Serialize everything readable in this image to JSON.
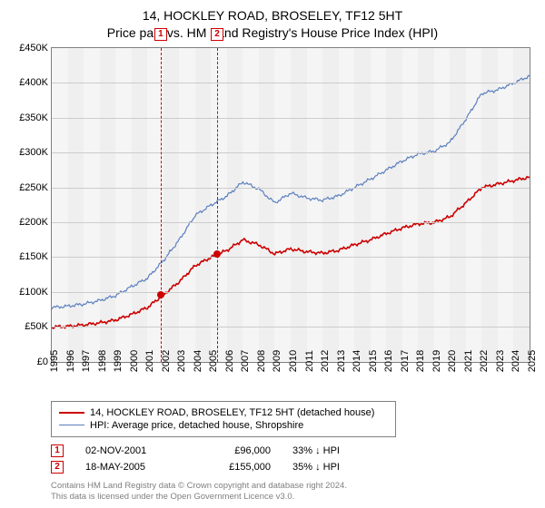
{
  "title_line1": "14, HOCKLEY ROAD, BROSELEY, TF12 5HT",
  "title_line2": "Price paid vs. HM Land Registry's House Price Index (HPI)",
  "chart": {
    "type": "line",
    "background_color": "#f5f5f5",
    "grid_color_h": "#cccccc",
    "grid_color_v": "#e5e5e5",
    "border_color": "#808080",
    "ylim": [
      0,
      450000
    ],
    "yticks": [
      0,
      50000,
      100000,
      150000,
      200000,
      250000,
      300000,
      350000,
      400000,
      450000
    ],
    "ytick_labels": [
      "£0",
      "£50K",
      "£100K",
      "£150K",
      "£200K",
      "£250K",
      "£300K",
      "£350K",
      "£400K",
      "£450K"
    ],
    "x_years": [
      1995,
      1996,
      1997,
      1998,
      1999,
      2000,
      2001,
      2002,
      2003,
      2004,
      2005,
      2006,
      2007,
      2008,
      2009,
      2010,
      2011,
      2012,
      2013,
      2014,
      2015,
      2016,
      2017,
      2018,
      2019,
      2020,
      2021,
      2022,
      2023,
      2024,
      2025
    ],
    "year_band_colors": [
      "#f5f5f5",
      "#efefef"
    ],
    "label_fontsize": 11,
    "series": [
      {
        "name": "hpi",
        "label": "HPI: Average price, detached house, Shropshire",
        "color": "#5b7fbf",
        "line_width": 1.2,
        "yearly_values": {
          "1995": 78000,
          "1996": 80000,
          "1997": 83000,
          "1998": 88000,
          "1999": 95000,
          "2000": 108000,
          "2001": 120000,
          "2002": 145000,
          "2003": 175000,
          "2004": 210000,
          "2005": 225000,
          "2006": 238000,
          "2007": 258000,
          "2008": 248000,
          "2009": 228000,
          "2010": 242000,
          "2011": 235000,
          "2012": 232000,
          "2013": 238000,
          "2014": 250000,
          "2015": 262000,
          "2016": 275000,
          "2017": 288000,
          "2018": 298000,
          "2019": 302000,
          "2020": 315000,
          "2021": 348000,
          "2022": 385000,
          "2023": 390000,
          "2024": 400000,
          "2025": 410000
        }
      },
      {
        "name": "property",
        "label": "14, HOCKLEY ROAD, BROSELEY, TF12 5HT (detached house)",
        "color": "#cc0000",
        "line_width": 1.6,
        "yearly_values": {
          "1995": 50000,
          "1996": 51000,
          "1997": 53000,
          "1998": 56000,
          "1999": 60000,
          "2000": 68000,
          "2001": 78000,
          "2002": 96000,
          "2003": 115000,
          "2004": 138000,
          "2005": 150000,
          "2006": 160000,
          "2007": 175000,
          "2008": 168000,
          "2009": 155000,
          "2010": 162000,
          "2011": 158000,
          "2012": 156000,
          "2013": 160000,
          "2014": 168000,
          "2015": 175000,
          "2016": 184000,
          "2017": 192000,
          "2018": 198000,
          "2019": 200000,
          "2020": 208000,
          "2021": 228000,
          "2022": 250000,
          "2023": 255000,
          "2024": 260000,
          "2025": 265000
        }
      }
    ],
    "sale_markers": [
      {
        "id": "1",
        "date_year": 2001.84,
        "price": 96000
      },
      {
        "id": "2",
        "date_year": 2005.38,
        "price": 155000
      }
    ]
  },
  "legend": {
    "border_color": "#808080",
    "items": [
      {
        "color": "#cc0000",
        "width": 2,
        "label_key": "chart.series.1.label"
      },
      {
        "color": "#5b7fbf",
        "width": 1.2,
        "label_key": "chart.series.0.label"
      }
    ]
  },
  "sales_table": [
    {
      "marker": "1",
      "date": "02-NOV-2001",
      "price": "£96,000",
      "annualised": "33% ↓ HPI"
    },
    {
      "marker": "2",
      "date": "18-MAY-2005",
      "price": "£155,000",
      "annualised": "35% ↓ HPI"
    }
  ],
  "footer_line1": "Contains HM Land Registry data © Crown copyright and database right 2024.",
  "footer_line2": "This data is licensed under the Open Government Licence v3.0."
}
